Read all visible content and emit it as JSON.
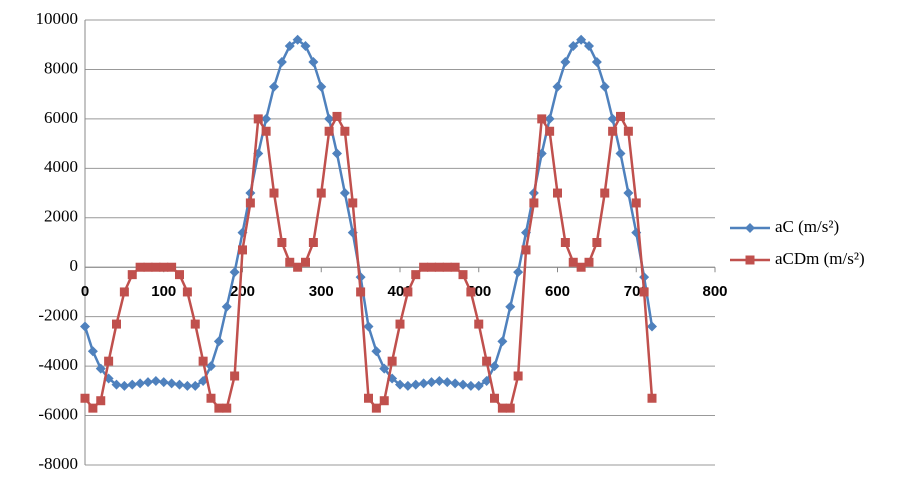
{
  "chart_data": {
    "type": "line",
    "x": [
      0,
      10,
      20,
      30,
      40,
      50,
      60,
      70,
      80,
      90,
      100,
      110,
      120,
      130,
      140,
      150,
      160,
      170,
      180,
      190,
      200,
      210,
      220,
      230,
      240,
      250,
      260,
      270,
      280,
      290,
      300,
      310,
      320,
      330,
      340,
      350,
      360,
      370,
      380,
      390,
      400,
      410,
      420,
      430,
      440,
      450,
      460,
      470,
      480,
      490,
      500,
      510,
      520,
      530,
      540,
      550,
      560,
      570,
      580,
      590,
      600,
      610,
      620,
      630,
      640,
      650,
      660,
      670,
      680,
      690,
      700,
      710,
      720
    ],
    "series": [
      {
        "name": "aC (m/s²)",
        "color": "#4f81bd",
        "marker": "diamond",
        "values": [
          -2400,
          -3400,
          -4100,
          -4500,
          -4750,
          -4800,
          -4750,
          -4700,
          -4650,
          -4600,
          -4650,
          -4700,
          -4750,
          -4800,
          -4800,
          -4600,
          -4000,
          -3000,
          -1600,
          -200,
          1400,
          3000,
          4600,
          6000,
          7300,
          8300,
          8950,
          9200,
          8950,
          8300,
          7300,
          6000,
          4600,
          3000,
          1400,
          -400,
          -2400,
          -3400,
          -4100,
          -4500,
          -4750,
          -4800,
          -4750,
          -4700,
          -4650,
          -4600,
          -4650,
          -4700,
          -4750,
          -4800,
          -4800,
          -4600,
          -4000,
          -3000,
          -1600,
          -200,
          1400,
          3000,
          4600,
          6000,
          7300,
          8300,
          8950,
          9200,
          8950,
          8300,
          7300,
          6000,
          4600,
          3000,
          1400,
          -400,
          -2400
        ]
      },
      {
        "name": "aCDm (m/s²)",
        "color": "#c0504d",
        "marker": "square",
        "values": [
          -5300,
          -5700,
          -5400,
          -3800,
          -2300,
          -1000,
          -300,
          0,
          0,
          0,
          0,
          0,
          -300,
          -1000,
          -2300,
          -3800,
          -5300,
          -5700,
          -5700,
          -4400,
          700,
          2600,
          6000,
          5500,
          3000,
          1000,
          200,
          0,
          200,
          1000,
          3000,
          5500,
          6100,
          5500,
          2600,
          -1000,
          -5300,
          -5700,
          -5400,
          -3800,
          -2300,
          -1000,
          -300,
          0,
          0,
          0,
          0,
          0,
          -300,
          -1000,
          -2300,
          -3800,
          -5300,
          -5700,
          -5700,
          -4400,
          700,
          2600,
          6000,
          5500,
          3000,
          1000,
          200,
          0,
          200,
          1000,
          3000,
          5500,
          6100,
          5500,
          2600,
          -1000,
          -5300
        ]
      }
    ],
    "xlim": [
      0,
      800
    ],
    "xticks": [
      0,
      100,
      200,
      300,
      400,
      500,
      600,
      700,
      800
    ],
    "ylim": [
      -8000,
      10000
    ],
    "yticks": [
      -8000,
      -6000,
      -4000,
      -2000,
      0,
      2000,
      4000,
      6000,
      8000,
      10000
    ],
    "grid": true,
    "legend": "right"
  }
}
